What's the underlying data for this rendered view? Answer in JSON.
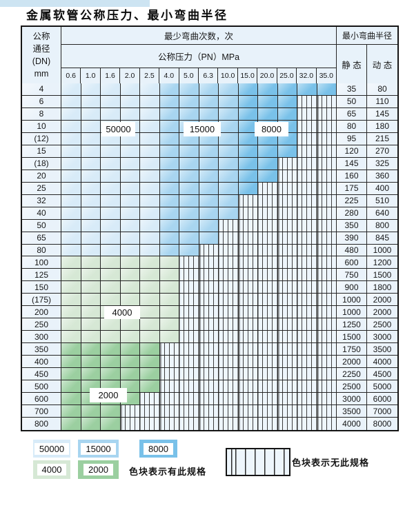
{
  "title": "金属软管公称压力、最小弯曲半径",
  "header": {
    "dn_lines": [
      "公称",
      "通径",
      "(DN)",
      "mm"
    ],
    "bend_cycles_label": "最少弯曲次数，次",
    "pressure_label": "公称压力（PN）MPa",
    "radius_label": "最小弯曲半径",
    "static_label": "静 态",
    "dynamic_label": "动 态",
    "pressures": [
      "0.6",
      "1.0",
      "1.6",
      "2.0",
      "2.5",
      "4.0",
      "5.0",
      "6.3",
      "10.0",
      "15.0",
      "20.0",
      "25.0",
      "32.0",
      "35.0"
    ]
  },
  "zones": {
    "c50000": {
      "label": "50000",
      "color": "#d8ebf8"
    },
    "c15000": {
      "label": "15000",
      "color": "#a8d5f0"
    },
    "c8000": {
      "label": "8000",
      "color": "#79c1e9"
    },
    "c4000": {
      "label": "4000",
      "color": "#d6e8d5"
    },
    "c2000": {
      "label": "2000",
      "color": "#9bcfa0"
    }
  },
  "zone_column_split": {
    "c50000_cols": "0.6–2.5",
    "c15000_cols": "4.0–10.0",
    "c8000_cols": "15.0–35.0"
  },
  "rows": [
    {
      "dn": "4",
      "zone": "blue",
      "last": 13,
      "static": "35",
      "dynamic": "80"
    },
    {
      "dn": "6",
      "zone": "blue",
      "last": 11,
      "static": "50",
      "dynamic": "110"
    },
    {
      "dn": "8",
      "zone": "blue",
      "last": 11,
      "static": "65",
      "dynamic": "145"
    },
    {
      "dn": "10",
      "zone": "blue",
      "last": 11,
      "static": "80",
      "dynamic": "180"
    },
    {
      "dn": "(12)",
      "zone": "blue",
      "last": 11,
      "static": "95",
      "dynamic": "215"
    },
    {
      "dn": "15",
      "zone": "blue",
      "last": 11,
      "static": "120",
      "dynamic": "270"
    },
    {
      "dn": "(18)",
      "zone": "blue",
      "last": 10,
      "static": "145",
      "dynamic": "325"
    },
    {
      "dn": "20",
      "zone": "blue",
      "last": 10,
      "static": "160",
      "dynamic": "360"
    },
    {
      "dn": "25",
      "zone": "blue",
      "last": 9,
      "static": "175",
      "dynamic": "400"
    },
    {
      "dn": "32",
      "zone": "blue",
      "last": 8,
      "static": "225",
      "dynamic": "510"
    },
    {
      "dn": "40",
      "zone": "blue",
      "last": 8,
      "static": "280",
      "dynamic": "640"
    },
    {
      "dn": "50",
      "zone": "blue",
      "last": 7,
      "static": "350",
      "dynamic": "800"
    },
    {
      "dn": "65",
      "zone": "blue",
      "last": 7,
      "static": "390",
      "dynamic": "845"
    },
    {
      "dn": "80",
      "zone": "blue",
      "last": 6,
      "static": "480",
      "dynamic": "1000"
    },
    {
      "dn": "100",
      "zone": "g4",
      "last": 5,
      "static": "600",
      "dynamic": "1200"
    },
    {
      "dn": "125",
      "zone": "g4",
      "last": 5,
      "static": "750",
      "dynamic": "1500"
    },
    {
      "dn": "150",
      "zone": "g4",
      "last": 5,
      "static": "900",
      "dynamic": "1800"
    },
    {
      "dn": "(175)",
      "zone": "g4",
      "last": 5,
      "static": "1000",
      "dynamic": "2000"
    },
    {
      "dn": "200",
      "zone": "g4",
      "last": 5,
      "static": "1000",
      "dynamic": "2000"
    },
    {
      "dn": "250",
      "zone": "g4",
      "last": 5,
      "static": "1250",
      "dynamic": "2500"
    },
    {
      "dn": "300",
      "zone": "g4",
      "last": 5,
      "static": "1500",
      "dynamic": "3000"
    },
    {
      "dn": "350",
      "zone": "g2",
      "last": 4,
      "static": "1750",
      "dynamic": "3500"
    },
    {
      "dn": "400",
      "zone": "g2",
      "last": 4,
      "static": "2000",
      "dynamic": "4000"
    },
    {
      "dn": "450",
      "zone": "g2",
      "last": 4,
      "static": "2250",
      "dynamic": "4500"
    },
    {
      "dn": "500",
      "zone": "g2",
      "last": 4,
      "static": "2500",
      "dynamic": "5000"
    },
    {
      "dn": "600",
      "zone": "g2",
      "last": 3,
      "static": "3000",
      "dynamic": "6000"
    },
    {
      "dn": "700",
      "zone": "g2",
      "last": 2,
      "static": "3500",
      "dynamic": "7000"
    },
    {
      "dn": "800",
      "zone": "g2",
      "last": 2,
      "static": "4000",
      "dynamic": "8000"
    }
  ],
  "legend": {
    "has_spec_text": "色块表示有此规格",
    "no_spec_text": "色块表示无此规格"
  }
}
